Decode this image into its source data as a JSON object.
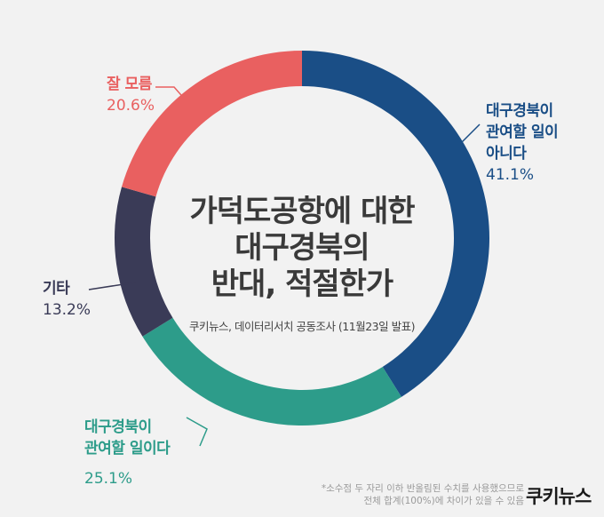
{
  "chart_data": {
    "type": "pie",
    "style": "donut",
    "title_lines": [
      "가덕도공항에 대한",
      "대구경북의",
      "반대, 적절한가"
    ],
    "source": "쿠키뉴스, 데이터리서치 공동조사 (11월23일 발표)",
    "slices": [
      {
        "label_lines": [
          "대구경북이",
          "관여할 일이",
          "아니다"
        ],
        "value": 41.1,
        "value_text": "41.1%",
        "color": "#1a4e86"
      },
      {
        "label_lines": [
          "대구경북이",
          "관여할 일이다"
        ],
        "value": 25.1,
        "value_text": "25.1%",
        "color": "#2d9c8a"
      },
      {
        "label_lines": [
          "기타"
        ],
        "value": 13.2,
        "value_text": "13.2%",
        "color": "#3a3b57"
      },
      {
        "label_lines": [
          "잘 모름"
        ],
        "value": 20.6,
        "value_text": "20.6%",
        "color": "#e96060"
      }
    ]
  },
  "footnote": {
    "line1": "*소수점 두 자리 이하 반올림된 수치를 사용했으므로",
    "line2": "전체 합계(100%)에 차이가 있을 수 있음"
  },
  "logo": "쿠키뉴스"
}
